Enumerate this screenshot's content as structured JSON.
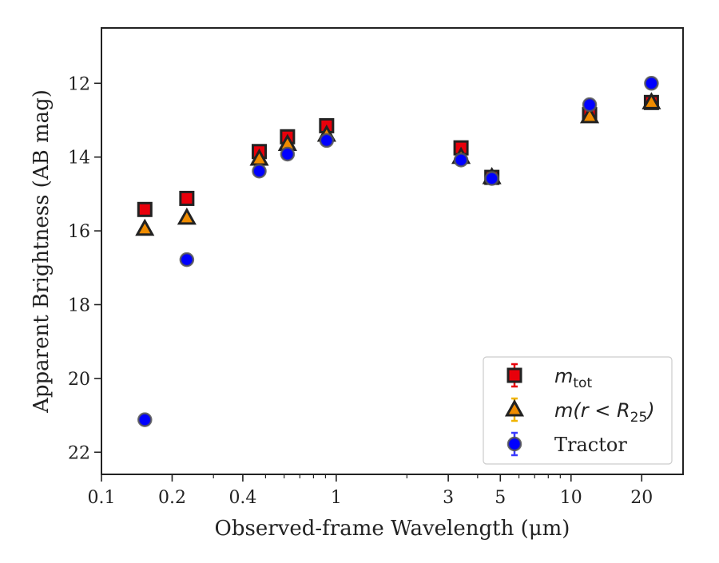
{
  "chart_data": {
    "type": "scatter",
    "title": "",
    "xlabel": "Observed-frame Wavelength (μm)",
    "ylabel": "Apparent Brightness (AB mag)",
    "xscale": "log",
    "xlim": [
      0.1,
      30
    ],
    "ylim": [
      22.6,
      10.5
    ],
    "y_inverted": true,
    "x_ticks": [
      0.1,
      0.2,
      0.4,
      1,
      3,
      5,
      10,
      20
    ],
    "x_tick_labels": [
      "0.1",
      "0.2",
      "0.4",
      "1",
      "3",
      "5",
      "10",
      "20"
    ],
    "y_ticks": [
      12,
      14,
      16,
      18,
      20,
      22
    ],
    "y_tick_labels": [
      "12",
      "14",
      "16",
      "18",
      "20",
      "22"
    ],
    "legend_position": "lower-right",
    "series": [
      {
        "name": "m_tot",
        "legend_label": {
          "main": "m",
          "sub": "tot"
        },
        "marker": "square",
        "color": "#e8000b",
        "edgecolor": "#222222",
        "errcolor": "#e8000b",
        "x": [
          0.153,
          0.231,
          0.47,
          0.62,
          0.91,
          3.4,
          4.6,
          12.0,
          22.0
        ],
        "y": [
          15.42,
          15.12,
          13.85,
          13.45,
          13.15,
          13.75,
          14.55,
          12.85,
          12.52
        ]
      },
      {
        "name": "m(r < R_25)",
        "legend_label": {
          "main": "m(r < R",
          "sub": "25",
          "tail": ")"
        },
        "marker": "triangle",
        "color": "#f08c00",
        "edgecolor": "#222222",
        "errcolor": "#f0b400",
        "x": [
          0.153,
          0.231,
          0.47,
          0.62,
          0.91,
          3.4,
          4.6,
          12.0,
          22.0
        ],
        "y": [
          15.95,
          15.65,
          14.05,
          13.65,
          13.4,
          14.0,
          14.55,
          12.9,
          12.52
        ]
      },
      {
        "name": "Tractor",
        "legend_label": {
          "main": "Tractor"
        },
        "marker": "circle",
        "color": "#0000ff",
        "edgecolor": "#555555",
        "errcolor": "#3a3aff",
        "x": [
          0.153,
          0.231,
          0.47,
          0.62,
          0.91,
          3.4,
          4.6,
          12.0,
          22.0
        ],
        "y": [
          21.12,
          16.78,
          14.38,
          13.92,
          13.55,
          14.08,
          14.58,
          12.58,
          12.0
        ]
      }
    ]
  }
}
